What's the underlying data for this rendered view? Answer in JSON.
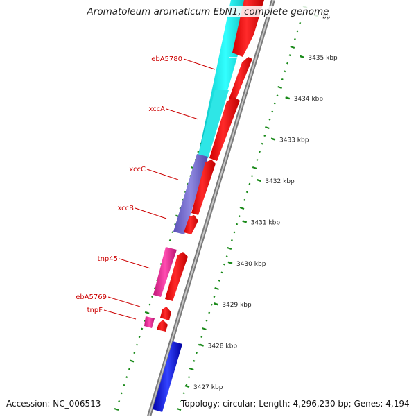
{
  "title": "Aromatoleum aromaticum EbN1, complete genome",
  "footer": {
    "accession": "Accession: NC_006513",
    "topology": "Topology: circular; Length: 4,296,230 bp; Genes: 4,194"
  },
  "ruler": {
    "unit": "kbp",
    "ticks": [
      {
        "kbp": 3427,
        "label": "3427 kbp"
      },
      {
        "kbp": 3428,
        "label": "3428 kbp"
      },
      {
        "kbp": 3429,
        "label": "3429 kbp"
      },
      {
        "kbp": 3430,
        "label": "3430 kbp"
      },
      {
        "kbp": 3431,
        "label": "3431 kbp"
      },
      {
        "kbp": 3432,
        "label": "3432 kbp"
      },
      {
        "kbp": 3433,
        "label": "3433 kbp"
      },
      {
        "kbp": 3434,
        "label": "3434 kbp"
      },
      {
        "kbp": 3435,
        "label": "3435 kbp"
      },
      {
        "kbp": 3436,
        "label": "bp"
      }
    ]
  },
  "gene_labels": [
    {
      "name": "ebA5780",
      "color": "#cc0000"
    },
    {
      "name": "xccA",
      "color": "#cc0000"
    },
    {
      "name": "xccC",
      "color": "#cc0000"
    },
    {
      "name": "xccB",
      "color": "#cc0000"
    },
    {
      "name": "tnp45",
      "color": "#cc0000"
    },
    {
      "name": "ebA5769",
      "color": "#cc0000"
    },
    {
      "name": "tnpF",
      "color": "#cc0000"
    }
  ],
  "features": [
    {
      "track": "cds",
      "color": "#ff0000",
      "start_kbp": 3427.0,
      "end_kbp": 3428.0
    },
    {
      "track": "blast",
      "color": "#00d8d8",
      "start_kbp": 3433.4,
      "end_kbp": 3436.5
    },
    {
      "track": "blast",
      "color": "#7066cc",
      "start_kbp": 3431.2,
      "end_kbp": 3432.8
    },
    {
      "track": "blast",
      "color": "#e82c92",
      "start_kbp": 3429.8,
      "end_kbp": 3431.0
    },
    {
      "track": "blast",
      "color": "#0000dd",
      "start_kbp": 3426.4,
      "end_kbp": 3428.1
    }
  ],
  "colors": {
    "backbone": "#9a9a9a",
    "gc_dots": "#1a8a1a",
    "forward_cds": "#ff0000",
    "label_text": "#cc0000"
  }
}
